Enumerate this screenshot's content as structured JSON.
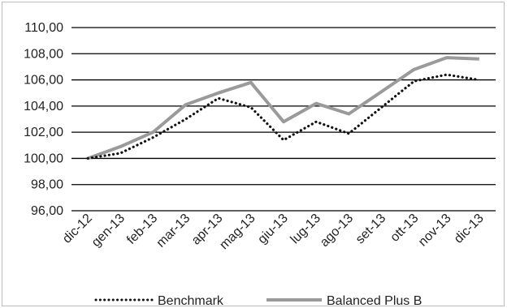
{
  "chart_data": {
    "type": "line",
    "categories": [
      "dic-12",
      "gen-13",
      "feb-13",
      "mar-13",
      "apr-13",
      "mag-13",
      "giu-13",
      "lug-13",
      "ago-13",
      "set-13",
      "ott-13",
      "nov-13",
      "dic-13"
    ],
    "y_ticks": [
      "96,00",
      "98,00",
      "100,00",
      "102,00",
      "104,00",
      "106,00",
      "108,00",
      "110,00"
    ],
    "ylim": [
      96,
      110
    ],
    "grid": true,
    "legend_position": "bottom",
    "series": [
      {
        "name": "Benchmark",
        "style": "dotted",
        "color": "#111111",
        "values": [
          100.0,
          100.4,
          101.6,
          103.0,
          104.6,
          103.9,
          101.4,
          102.8,
          101.9,
          103.9,
          105.9,
          106.4,
          106.0
        ]
      },
      {
        "name": "Balanced Plus B",
        "style": "solid",
        "color": "#9a9a9a",
        "values": [
          100.0,
          100.9,
          102.0,
          104.1,
          105.0,
          105.8,
          102.8,
          104.2,
          103.4,
          105.1,
          106.8,
          107.7,
          107.6
        ]
      }
    ]
  }
}
